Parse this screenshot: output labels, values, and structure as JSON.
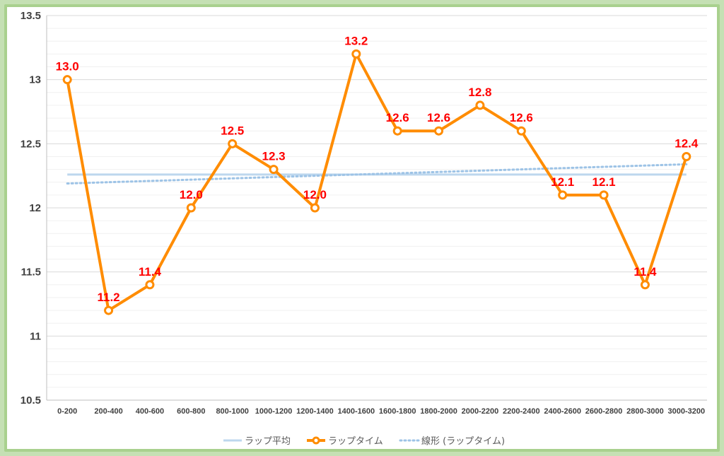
{
  "chart_data": {
    "type": "line",
    "categories": [
      "0-200",
      "200-400",
      "400-600",
      "600-800",
      "800-1000",
      "1000-1200",
      "1200-1400",
      "1400-1600",
      "1600-1800",
      "1800-2000",
      "2000-2200",
      "2200-2400",
      "2400-2600",
      "2600-2800",
      "2800-3000",
      "3000-3200"
    ],
    "series": [
      {
        "name": "ラップ平均",
        "style": "solid",
        "color": "#bdd7ee",
        "values": [
          12.26,
          12.26,
          12.26,
          12.26,
          12.26,
          12.26,
          12.26,
          12.26,
          12.26,
          12.26,
          12.26,
          12.26,
          12.26,
          12.26,
          12.26,
          12.26
        ]
      },
      {
        "name": "ラップタイム",
        "style": "solid-marker",
        "color": "#ff8c00",
        "values": [
          13.0,
          11.2,
          11.4,
          12.0,
          12.5,
          12.3,
          12.0,
          13.2,
          12.6,
          12.6,
          12.8,
          12.6,
          12.1,
          12.1,
          11.4,
          12.4
        ],
        "data_labels": [
          "13.0",
          "11.2",
          "11.4",
          "12.0",
          "12.5",
          "12.3",
          "12.0",
          "13.2",
          "12.6",
          "12.6",
          "12.8",
          "12.6",
          "12.1",
          "12.1",
          "11.4",
          "12.4"
        ]
      },
      {
        "name": "線形 (ラップタイム)",
        "style": "dotted",
        "color": "#9dc3e6",
        "values": [
          12.19,
          12.2,
          12.21,
          12.22,
          12.23,
          12.24,
          12.25,
          12.26,
          12.27,
          12.28,
          12.29,
          12.3,
          12.31,
          12.32,
          12.33,
          12.34
        ]
      }
    ],
    "ylim": [
      10.5,
      13.5
    ],
    "yticks": [
      "10.5",
      "11",
      "11.5",
      "12",
      "12.5",
      "13",
      "13.5"
    ],
    "ytick_values": [
      10.5,
      11,
      11.5,
      12,
      12.5,
      13,
      13.5
    ],
    "minor_grid_step": 0.1,
    "grid": true,
    "legend_position": "bottom",
    "label_color": "#ff0000"
  }
}
